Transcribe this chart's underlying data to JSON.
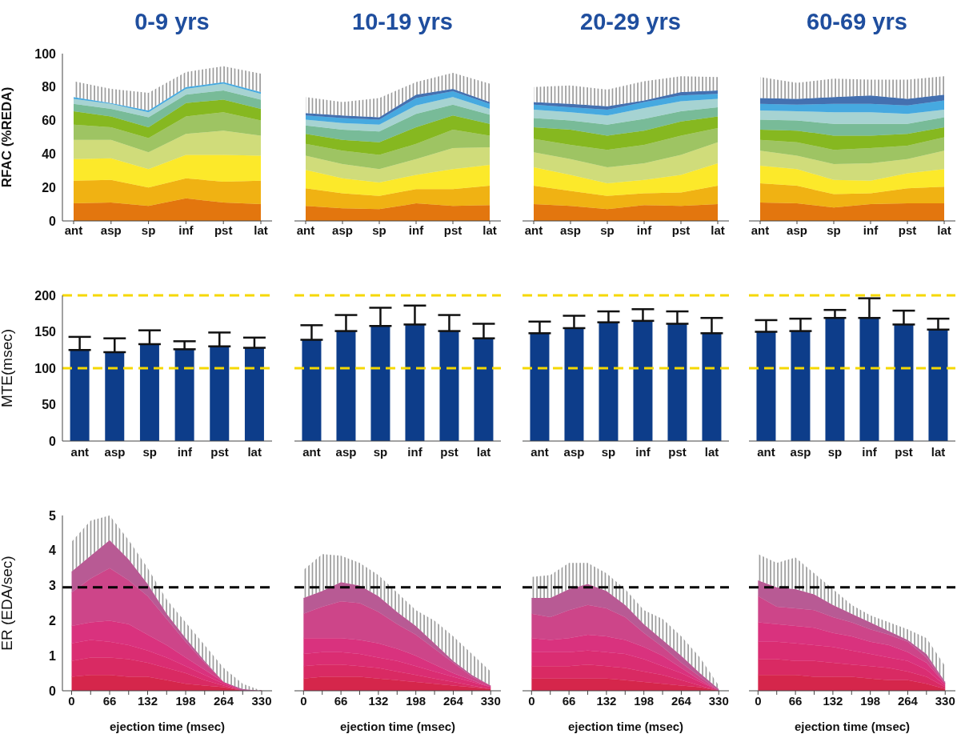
{
  "chart_data": [
    {
      "type": "area",
      "stacked": true,
      "title": "0-9 yrs",
      "ylabel": "RFAC (%REDA)",
      "categories": [
        "ant",
        "asp",
        "sp",
        "inf",
        "pst",
        "lat"
      ],
      "ylim": [
        0,
        100
      ],
      "yticks": [
        0,
        20,
        40,
        60,
        80,
        100
      ],
      "series": [
        {
          "color": "#e3760e",
          "values": [
            10.5,
            11,
            9,
            13.5,
            11,
            10
          ]
        },
        {
          "color": "#f0b213",
          "values": [
            13.5,
            13.5,
            11,
            12,
            12.5,
            14
          ]
        },
        {
          "color": "#fce92a",
          "values": [
            13,
            13,
            11,
            14,
            16,
            15
          ]
        },
        {
          "color": "#d0dc7a",
          "values": [
            11.5,
            11,
            10,
            12.5,
            14.5,
            12
          ]
        },
        {
          "color": "#9ec463",
          "values": [
            9,
            7.5,
            8.5,
            10.5,
            11,
            9
          ]
        },
        {
          "color": "#86b820",
          "values": [
            8,
            6.5,
            6.5,
            8,
            7.5,
            7
          ]
        },
        {
          "color": "#78bb98",
          "values": [
            4.5,
            4.5,
            6,
            5,
            5.5,
            5.5
          ]
        },
        {
          "color": "#a6d3d2",
          "values": [
            3,
            3,
            3,
            3.5,
            4,
            3.5
          ]
        },
        {
          "color": "#46a9e0",
          "values": [
            1,
            0.5,
            1,
            1,
            1,
            1
          ],
          "lower": [
            74,
            70.5,
            66,
            80,
            83,
            77
          ],
          "upper": [
            83.5,
            79,
            76.5,
            89,
            92.5,
            88
          ]
        }
      ]
    },
    {
      "type": "area",
      "stacked": true,
      "title": "10-19 yrs",
      "tick_labels": "x",
      "categories": [
        "ant",
        "asp",
        "sp",
        "inf",
        "pst",
        "lat"
      ],
      "ylim": [
        0,
        100
      ],
      "series": [
        {
          "color": "#e3760e",
          "values": [
            9,
            7.5,
            7,
            10.5,
            9,
            9.5
          ]
        },
        {
          "color": "#f0b213",
          "values": [
            10.5,
            9,
            8,
            8.5,
            10,
            11.5
          ]
        },
        {
          "color": "#fce92a",
          "values": [
            11,
            9,
            8,
            8.5,
            12,
            12.5
          ]
        },
        {
          "color": "#d0dc7a",
          "values": [
            8.5,
            8.5,
            8,
            9.5,
            12.5,
            10.5
          ]
        },
        {
          "color": "#9ec463",
          "values": [
            7,
            8,
            8.5,
            9,
            11,
            7
          ]
        },
        {
          "color": "#86b820",
          "values": [
            6,
            6.5,
            7.5,
            10,
            8.5,
            7
          ]
        },
        {
          "color": "#78bb98",
          "values": [
            5,
            6,
            6.5,
            8,
            6.5,
            5.5
          ]
        },
        {
          "color": "#a6d3d2",
          "values": [
            3.5,
            4,
            4,
            5,
            4.5,
            3.5
          ]
        },
        {
          "color": "#46a9e0",
          "values": [
            2.5,
            3,
            3,
            4.5,
            3.5,
            3
          ]
        },
        {
          "color": "#4470b0",
          "values": [
            1.5,
            1.5,
            1.5,
            2,
            1.5,
            1
          ],
          "lower": [
            64.5,
            63,
            62,
            75.5,
            79,
            71
          ],
          "upper": [
            74,
            71,
            73.5,
            83,
            88.5,
            82
          ]
        }
      ]
    },
    {
      "type": "area",
      "stacked": true,
      "title": "20-29 yrs",
      "tick_labels": "x",
      "categories": [
        "ant",
        "asp",
        "sp",
        "inf",
        "pst",
        "lat"
      ],
      "ylim": [
        0,
        100
      ],
      "series": [
        {
          "color": "#e3760e",
          "values": [
            10,
            9,
            7,
            9.5,
            9,
            10
          ]
        },
        {
          "color": "#f0b213",
          "values": [
            11,
            9,
            8,
            7,
            8,
            11
          ]
        },
        {
          "color": "#fce92a",
          "values": [
            11,
            9.5,
            7.5,
            8,
            10.5,
            13.5
          ]
        },
        {
          "color": "#d0dc7a",
          "values": [
            9,
            9.5,
            9.5,
            10,
            12,
            12.5
          ]
        },
        {
          "color": "#9ec463",
          "values": [
            8,
            8.5,
            10.5,
            11,
            11.5,
            8.5
          ]
        },
        {
          "color": "#86b820",
          "values": [
            7,
            9,
            8.5,
            8.5,
            8.5,
            7
          ]
        },
        {
          "color": "#78bb98",
          "values": [
            5.5,
            5.5,
            6.5,
            7,
            6,
            5.5
          ]
        },
        {
          "color": "#a6d3d2",
          "values": [
            5,
            5,
            5.5,
            6.5,
            6,
            5
          ]
        },
        {
          "color": "#46a9e0",
          "values": [
            3,
            3,
            3.5,
            3.5,
            3.5,
            3
          ]
        },
        {
          "color": "#4470b0",
          "values": [
            1.5,
            2,
            2,
            1,
            2,
            2
          ],
          "lower": [
            71,
            70,
            68.5,
            72,
            77,
            78
          ],
          "upper": [
            80,
            81,
            78.5,
            83.5,
            86.5,
            86
          ]
        }
      ]
    },
    {
      "type": "area",
      "stacked": true,
      "title": "60-69 yrs",
      "tick_labels": "x",
      "categories": [
        "ant",
        "asp",
        "sp",
        "inf",
        "pst",
        "lat"
      ],
      "ylim": [
        0,
        100
      ],
      "series": [
        {
          "color": "#e3760e",
          "values": [
            11,
            10.5,
            8,
            10,
            10.5,
            10.5
          ]
        },
        {
          "color": "#f0b213",
          "values": [
            11.5,
            10.5,
            8,
            6.5,
            9,
            10
          ]
        },
        {
          "color": "#fce92a",
          "values": [
            10.5,
            10,
            8.5,
            7.5,
            9,
            10.5
          ]
        },
        {
          "color": "#d0dc7a",
          "values": [
            9,
            8,
            9.5,
            10.5,
            8.5,
            11
          ]
        },
        {
          "color": "#9ec463",
          "values": [
            6.5,
            8,
            8.5,
            9,
            8,
            8
          ]
        },
        {
          "color": "#86b820",
          "values": [
            6,
            7,
            8.5,
            7.5,
            7,
            6
          ]
        },
        {
          "color": "#78bb98",
          "values": [
            6,
            6,
            7,
            7,
            6,
            6
          ]
        },
        {
          "color": "#a6d3d2",
          "values": [
            5.5,
            5.5,
            7,
            7,
            6,
            4.5
          ]
        },
        {
          "color": "#46a9e0",
          "values": [
            4,
            4,
            5,
            5,
            5,
            5.5
          ]
        },
        {
          "color": "#4470b0",
          "values": [
            3.5,
            3.5,
            4,
            5,
            4,
            3.5
          ],
          "lower": [
            73.5,
            73,
            74,
            75,
            73,
            75.5
          ],
          "upper": [
            86,
            82.5,
            85,
            84.5,
            84.5,
            86.5
          ]
        }
      ]
    },
    {
      "type": "bar",
      "ylabel": "MTE(msec)",
      "categories": [
        "ant",
        "asp",
        "sp",
        "inf",
        "pst",
        "lat"
      ],
      "ylim": [
        0,
        200
      ],
      "yticks": [
        0,
        50,
        100,
        150,
        200
      ],
      "ref_lines": [
        {
          "axis": "y",
          "value": 100,
          "color": "#f5d800",
          "line_style": "dashed"
        },
        {
          "axis": "y",
          "value": 200,
          "color": "#f5d800",
          "line_style": "dashed"
        }
      ],
      "series": [
        {
          "color": "#0d3d8a",
          "values": [
            125,
            122,
            133,
            126,
            130,
            128
          ],
          "errors": [
            [
              125,
              143
            ],
            [
              122,
              141
            ],
            [
              133,
              152
            ],
            [
              126,
              137
            ],
            [
              130,
              149
            ],
            [
              128,
              142
            ]
          ]
        }
      ]
    },
    {
      "type": "bar",
      "tick_labels": "x",
      "categories": [
        "ant",
        "asp",
        "sp",
        "inf",
        "pst",
        "lat"
      ],
      "ylim": [
        0,
        200
      ],
      "ref_lines": [
        {
          "axis": "y",
          "value": 100,
          "color": "#f5d800",
          "line_style": "dashed"
        },
        {
          "axis": "y",
          "value": 200,
          "color": "#f5d800",
          "line_style": "dashed"
        }
      ],
      "series": [
        {
          "color": "#0d3d8a",
          "values": [
            139,
            151,
            158,
            160,
            151,
            141
          ],
          "errors": [
            [
              139,
              159
            ],
            [
              151,
              173
            ],
            [
              158,
              183
            ],
            [
              160,
              186
            ],
            [
              151,
              173
            ],
            [
              141,
              161
            ]
          ]
        }
      ]
    },
    {
      "type": "bar",
      "tick_labels": "x",
      "categories": [
        "ant",
        "asp",
        "sp",
        "inf",
        "pst",
        "lat"
      ],
      "ylim": [
        0,
        200
      ],
      "ref_lines": [
        {
          "axis": "y",
          "value": 100,
          "color": "#f5d800",
          "line_style": "dashed"
        },
        {
          "axis": "y",
          "value": 200,
          "color": "#f5d800",
          "line_style": "dashed"
        }
      ],
      "series": [
        {
          "color": "#0d3d8a",
          "values": [
            148,
            155,
            163,
            165,
            161,
            148
          ],
          "errors": [
            [
              148,
              164
            ],
            [
              155,
              172
            ],
            [
              163,
              178
            ],
            [
              165,
              181
            ],
            [
              161,
              178
            ],
            [
              148,
              169
            ]
          ]
        }
      ]
    },
    {
      "type": "bar",
      "tick_labels": "x",
      "categories": [
        "ant",
        "asp",
        "sp",
        "inf",
        "pst",
        "lat"
      ],
      "ylim": [
        0,
        200
      ],
      "ref_lines": [
        {
          "axis": "y",
          "value": 100,
          "color": "#f5d800",
          "line_style": "dashed"
        },
        {
          "axis": "y",
          "value": 200,
          "color": "#f5d800",
          "line_style": "dashed"
        }
      ],
      "series": [
        {
          "color": "#0d3d8a",
          "values": [
            150,
            151,
            169,
            169,
            160,
            153
          ],
          "errors": [
            [
              150,
              166
            ],
            [
              151,
              168
            ],
            [
              169,
              180
            ],
            [
              169,
              196
            ],
            [
              160,
              179
            ],
            [
              153,
              168
            ]
          ]
        }
      ]
    },
    {
      "type": "area",
      "stacked": true,
      "xlabel": "ejection time (msec)",
      "ylabel": "ER (EDA/sec)",
      "x": [
        0,
        33,
        66,
        99,
        132,
        165,
        198,
        231,
        264,
        297,
        330
      ],
      "xlim": [
        -16,
        348
      ],
      "xticks": [
        0,
        {
          "value": 33,
          "label": null
        },
        66,
        {
          "value": 99,
          "label": null
        },
        132,
        {
          "value": 165,
          "label": null
        },
        198,
        {
          "value": 231,
          "label": null
        },
        264,
        {
          "value": 297,
          "label": null
        },
        330
      ],
      "ylim": [
        0,
        5
      ],
      "yticks": [
        0,
        1,
        2,
        3,
        4,
        5
      ],
      "ref_lines": [
        {
          "axis": "y",
          "value": 2.95,
          "color": "#000000",
          "line_style": "dashed"
        }
      ],
      "series": [
        {
          "color": "#d5264b",
          "values": [
            0.4,
            0.45,
            0.45,
            0.4,
            0.4,
            0.3,
            0.2,
            0.15,
            0.1,
            0,
            0
          ]
        },
        {
          "color": "#d92a63",
          "values": [
            0.45,
            0.5,
            0.5,
            0.5,
            0.4,
            0.35,
            0.3,
            0.15,
            0.05,
            0,
            0
          ]
        },
        {
          "color": "#da2d72",
          "values": [
            0.5,
            0.5,
            0.45,
            0.4,
            0.35,
            0.3,
            0.2,
            0.15,
            0.05,
            0,
            0
          ]
        },
        {
          "color": "#d9327e",
          "values": [
            0.5,
            0.5,
            0.6,
            0.6,
            0.45,
            0.35,
            0.25,
            0.15,
            0.05,
            0,
            0
          ]
        },
        {
          "color": "#cd4589",
          "values": [
            0.95,
            1.25,
            1.5,
            1.25,
            1.1,
            0.75,
            0.45,
            0.2,
            0,
            0,
            0
          ]
        },
        {
          "color": "#b85a94",
          "values": [
            0.6,
            0.65,
            0.8,
            0.6,
            0.35,
            0.15,
            0.1,
            0.05,
            0,
            0.05,
            0
          ],
          "lower": [
            3.4,
            3.85,
            4.3,
            3.75,
            3.05,
            2.2,
            1.5,
            0.85,
            0.25,
            0.05,
            0
          ],
          "upper": [
            4.25,
            4.85,
            5,
            4.3,
            3.5,
            2.6,
            1.95,
            1.3,
            0.65,
            0.2,
            0
          ]
        }
      ]
    },
    {
      "type": "area",
      "stacked": true,
      "tick_labels": "x",
      "xlabel": "ejection time (msec)",
      "x": [
        0,
        33,
        66,
        99,
        132,
        165,
        198,
        231,
        264,
        297,
        330
      ],
      "xlim": [
        -16,
        348
      ],
      "xticks": [
        0,
        {
          "value": 33,
          "label": null
        },
        66,
        {
          "value": 99,
          "label": null
        },
        132,
        {
          "value": 165,
          "label": null
        },
        198,
        {
          "value": 231,
          "label": null
        },
        264,
        {
          "value": 297,
          "label": null
        },
        330
      ],
      "ylim": [
        0,
        5
      ],
      "ref_lines": [
        {
          "axis": "y",
          "value": 2.95,
          "color": "#000000",
          "line_style": "dashed"
        }
      ],
      "series": [
        {
          "color": "#d5264b",
          "values": [
            0.35,
            0.4,
            0.4,
            0.4,
            0.35,
            0.3,
            0.25,
            0.2,
            0.15,
            0.1,
            0.05
          ]
        },
        {
          "color": "#d92a63",
          "values": [
            0.35,
            0.35,
            0.35,
            0.3,
            0.3,
            0.25,
            0.2,
            0.15,
            0.1,
            0.05,
            0
          ]
        },
        {
          "color": "#da2d72",
          "values": [
            0.35,
            0.35,
            0.35,
            0.35,
            0.3,
            0.3,
            0.25,
            0.2,
            0.15,
            0.1,
            0.05
          ]
        },
        {
          "color": "#d9327e",
          "values": [
            0.45,
            0.4,
            0.4,
            0.4,
            0.4,
            0.35,
            0.3,
            0.2,
            0.1,
            0.05,
            0
          ]
        },
        {
          "color": "#cd4589",
          "values": [
            0.7,
            0.9,
            1.05,
            1.05,
            0.9,
            0.7,
            0.6,
            0.45,
            0.3,
            0.1,
            0.05
          ]
        },
        {
          "color": "#b85a94",
          "values": [
            0.45,
            0.45,
            0.55,
            0.5,
            0.45,
            0.35,
            0.25,
            0.15,
            0.05,
            0.05,
            0
          ],
          "lower": [
            2.65,
            2.85,
            3.1,
            3,
            2.7,
            2.25,
            1.85,
            1.35,
            0.85,
            0.45,
            0.15
          ],
          "upper": [
            3.45,
            3.9,
            3.85,
            3.65,
            3.3,
            2.8,
            2.3,
            2,
            1.55,
            1.05,
            0.55
          ]
        }
      ]
    },
    {
      "type": "area",
      "stacked": true,
      "tick_labels": "x",
      "xlabel": "ejection time (msec)",
      "x": [
        0,
        33,
        66,
        99,
        132,
        165,
        198,
        231,
        264,
        297,
        330
      ],
      "xlim": [
        -16,
        348
      ],
      "xticks": [
        0,
        {
          "value": 33,
          "label": null
        },
        66,
        {
          "value": 99,
          "label": null
        },
        132,
        {
          "value": 165,
          "label": null
        },
        198,
        {
          "value": 231,
          "label": null
        },
        264,
        {
          "value": 297,
          "label": null
        },
        330
      ],
      "ylim": [
        0,
        5
      ],
      "ref_lines": [
        {
          "axis": "y",
          "value": 2.95,
          "color": "#000000",
          "line_style": "dashed"
        }
      ],
      "series": [
        {
          "color": "#d5264b",
          "values": [
            0.35,
            0.35,
            0.35,
            0.35,
            0.35,
            0.3,
            0.25,
            0.2,
            0.15,
            0.1,
            0
          ]
        },
        {
          "color": "#d92a63",
          "values": [
            0.35,
            0.35,
            0.35,
            0.4,
            0.35,
            0.35,
            0.3,
            0.25,
            0.15,
            0.05,
            0
          ]
        },
        {
          "color": "#da2d72",
          "values": [
            0.4,
            0.4,
            0.4,
            0.4,
            0.4,
            0.4,
            0.35,
            0.25,
            0.2,
            0.1,
            0
          ]
        },
        {
          "color": "#d9327e",
          "values": [
            0.4,
            0.35,
            0.4,
            0.45,
            0.45,
            0.4,
            0.35,
            0.3,
            0.15,
            0.05,
            0
          ]
        },
        {
          "color": "#cd4589",
          "values": [
            0.7,
            0.65,
            0.8,
            0.85,
            0.8,
            0.65,
            0.4,
            0.25,
            0.15,
            0.1,
            0
          ]
        },
        {
          "color": "#b85a94",
          "values": [
            0.45,
            0.55,
            0.6,
            0.6,
            0.5,
            0.35,
            0.25,
            0.2,
            0.2,
            0.1,
            0.05
          ],
          "lower": [
            2.65,
            2.65,
            2.9,
            3.05,
            2.85,
            2.45,
            1.9,
            1.45,
            1,
            0.5,
            0.05
          ],
          "upper": [
            3.25,
            3.3,
            3.65,
            3.65,
            3.35,
            2.9,
            2.3,
            2.05,
            1.55,
            0.95,
            0.15
          ]
        }
      ]
    },
    {
      "type": "area",
      "stacked": true,
      "tick_labels": "x",
      "xlabel": "ejection time (msec)",
      "x": [
        0,
        33,
        66,
        99,
        132,
        165,
        198,
        231,
        264,
        297,
        330
      ],
      "xlim": [
        -16,
        348
      ],
      "xticks": [
        0,
        {
          "value": 33,
          "label": null
        },
        66,
        {
          "value": 99,
          "label": null
        },
        132,
        {
          "value": 165,
          "label": null
        },
        198,
        {
          "value": 231,
          "label": null
        },
        264,
        {
          "value": 297,
          "label": null
        },
        330
      ],
      "ylim": [
        0,
        5
      ],
      "ref_lines": [
        {
          "axis": "y",
          "value": 2.95,
          "color": "#000000",
          "line_style": "dashed"
        }
      ],
      "series": [
        {
          "color": "#d5264b",
          "values": [
            0.45,
            0.45,
            0.45,
            0.4,
            0.4,
            0.4,
            0.35,
            0.3,
            0.3,
            0.2,
            0.05
          ]
        },
        {
          "color": "#d92a63",
          "values": [
            0.45,
            0.45,
            0.4,
            0.45,
            0.4,
            0.35,
            0.35,
            0.35,
            0.25,
            0.2,
            0.05
          ]
        },
        {
          "color": "#da2d72",
          "values": [
            0.5,
            0.5,
            0.5,
            0.45,
            0.45,
            0.4,
            0.35,
            0.3,
            0.3,
            0.2,
            0.05
          ]
        },
        {
          "color": "#d9327e",
          "values": [
            0.55,
            0.5,
            0.5,
            0.5,
            0.4,
            0.4,
            0.35,
            0.35,
            0.25,
            0.2,
            0.05
          ]
        },
        {
          "color": "#cd4589",
          "values": [
            0.75,
            0.5,
            0.5,
            0.5,
            0.45,
            0.4,
            0.35,
            0.3,
            0.3,
            0.15,
            0
          ]
        },
        {
          "color": "#b85a94",
          "values": [
            0.45,
            0.55,
            0.55,
            0.45,
            0.35,
            0.25,
            0.2,
            0.1,
            0.05,
            0.1,
            0.05
          ],
          "lower": [
            3.15,
            2.95,
            2.9,
            2.75,
            2.45,
            2.2,
            1.95,
            1.7,
            1.45,
            1.05,
            0.25
          ],
          "upper": [
            3.9,
            3.65,
            3.8,
            3.35,
            2.9,
            2.45,
            2.15,
            1.95,
            1.75,
            1.5,
            0.7
          ]
        }
      ]
    }
  ]
}
